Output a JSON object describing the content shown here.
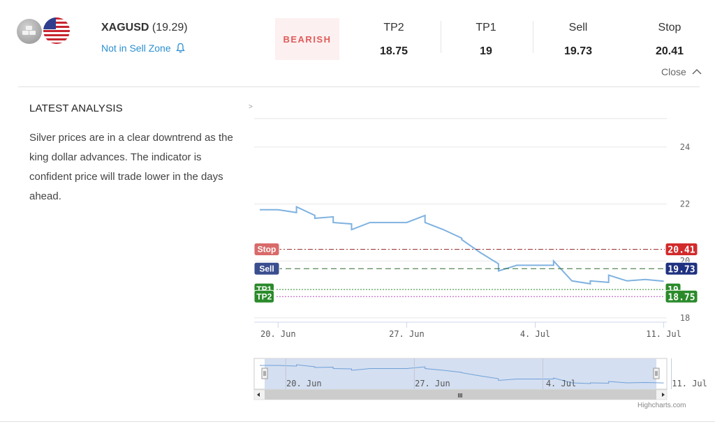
{
  "header": {
    "symbol": "XAGUSD",
    "price": "(19.29)",
    "zone_status": "Not in Sell Zone",
    "sentiment": "BEARISH",
    "close_label": "Close",
    "stats": [
      {
        "label": "TP2",
        "value": "18.75"
      },
      {
        "label": "TP1",
        "value": "19"
      },
      {
        "label": "Sell",
        "value": "19.73"
      },
      {
        "label": "Stop",
        "value": "20.41"
      }
    ]
  },
  "icons": {
    "asset": "silver-bars-icon",
    "currency": "us-flag-icon",
    "bell": "bell-icon",
    "close": "chevron-up-icon",
    "chart_menu": "chevron-right-icon"
  },
  "analysis": {
    "title": "LATEST ANALYSIS",
    "text": "Silver prices are in a clear downtrend as the king dollar advances. The indicator is confident price will trade lower in the days ahead."
  },
  "colors": {
    "line": "#7fb2e0",
    "stop": "#d22b2b",
    "sell": "#1f3180",
    "tp": "#2a8a2a",
    "tp2_line": "#b84fb8",
    "bearish_text": "#e05a5a",
    "link": "#2a8fd0"
  },
  "chart_data": {
    "type": "line",
    "x_unit": "date",
    "x_ticks": [
      "20. Jun",
      "27. Jun",
      "4. Jul",
      "11. Jul"
    ],
    "y_ticks": [
      "18",
      "20",
      "22",
      "24"
    ],
    "ylim": [
      17.9,
      25
    ],
    "grid": true,
    "series": [
      {
        "x": [
          "2022-06-19",
          "2022-06-20",
          "2022-06-21",
          "2022-06-21",
          "2022-06-22",
          "2022-06-22",
          "2022-06-23",
          "2022-06-23",
          "2022-06-24",
          "2022-06-24",
          "2022-06-25",
          "2022-06-27",
          "2022-06-28",
          "2022-06-28",
          "2022-06-29",
          "2022-06-30",
          "2022-06-30",
          "2022-07-01",
          "2022-07-02",
          "2022-07-02",
          "2022-07-03",
          "2022-07-04",
          "2022-07-05",
          "2022-07-05",
          "2022-07-06",
          "2022-07-07",
          "2022-07-07",
          "2022-07-08",
          "2022-07-08",
          "2022-07-09",
          "2022-07-10",
          "2022-07-11"
        ],
        "y": [
          21.8,
          21.8,
          21.7,
          21.9,
          21.6,
          21.5,
          21.55,
          21.35,
          21.3,
          21.1,
          21.35,
          21.35,
          21.6,
          21.35,
          21.1,
          20.8,
          20.75,
          20.3,
          19.9,
          19.65,
          19.85,
          19.85,
          19.85,
          20.0,
          19.3,
          19.2,
          19.3,
          19.25,
          19.5,
          19.3,
          19.35,
          19.29
        ]
      }
    ],
    "levels": [
      {
        "name": "Stop",
        "value": 20.41,
        "label": "20.41",
        "line_style": "dash-dot"
      },
      {
        "name": "Sell",
        "value": 19.73,
        "label": "19.73",
        "line_style": "dashed"
      },
      {
        "name": "TP1",
        "value": 19,
        "label": "19",
        "line_style": "dotted"
      },
      {
        "name": "TP2",
        "value": 18.75,
        "label": "18.75",
        "line_style": "dotted"
      }
    ],
    "navigator": {
      "x_ticks": [
        "20. Jun",
        "27. Jun",
        "4. Jul",
        "11. Jul"
      ],
      "scroll_grip": "III"
    },
    "credit": "Highcharts.com"
  }
}
